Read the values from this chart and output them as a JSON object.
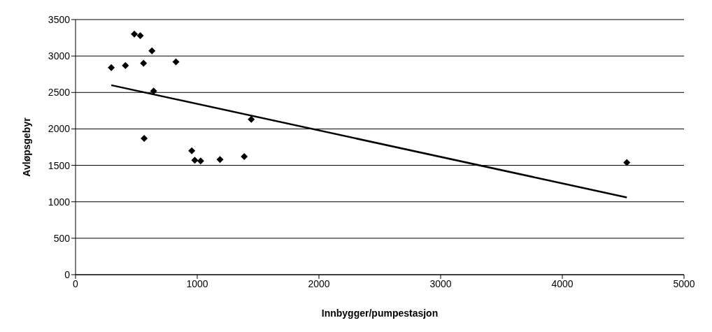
{
  "chart_data": {
    "type": "scatter",
    "xlabel": "Innbygger/pumpestasjon",
    "ylabel": "Avløpsgebyr",
    "xlim": [
      0,
      5000
    ],
    "xticks": [
      0,
      1000,
      2000,
      3000,
      4000,
      5000
    ],
    "ylim": [
      0,
      3500
    ],
    "yticks": [
      0,
      500,
      1000,
      1500,
      2000,
      2500,
      3000,
      3500
    ],
    "grid": "y",
    "marker": "diamond",
    "series": [
      {
        "color": "#000000",
        "x": [
          294,
          410,
          483,
          532,
          559,
          628,
          825,
          642,
          1444,
          564,
          955,
          980,
          1028,
          1187,
          1386,
          4530
        ],
        "values": [
          2840,
          2870,
          3300,
          3280,
          2900,
          3070,
          2920,
          2520,
          2130,
          1870,
          1700,
          1570,
          1560,
          1580,
          1620,
          1540
        ]
      },
      {
        "type": "line",
        "color": "#000000",
        "line_style": "solid",
        "marker": "none",
        "x": [
          294,
          4530
        ],
        "values": [
          2600,
          1060
        ]
      }
    ]
  }
}
